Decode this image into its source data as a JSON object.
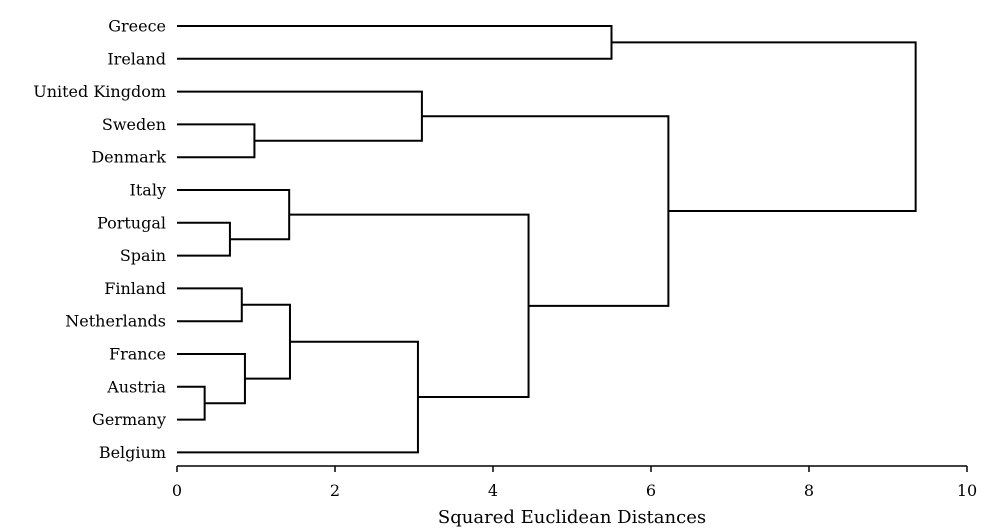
{
  "chart_data": {
    "type": "dendrogram",
    "orientation": "horizontal",
    "title": "",
    "xlabel": "Squared Euclidean Distances",
    "ylabel": "",
    "xlim": [
      0,
      10
    ],
    "xticks": [
      0,
      2,
      4,
      6,
      8,
      10
    ],
    "grid": false,
    "leaves": [
      "Greece",
      "Ireland",
      "United Kingdom",
      "Sweden",
      "Denmark",
      "Italy",
      "Portugal",
      "Spain",
      "Finland",
      "Netherlands",
      "France",
      "Austria",
      "Germany",
      "Belgium"
    ],
    "merges": [
      {
        "id": "c1",
        "children": [
          "Austria",
          "Germany"
        ],
        "distance": 0.35
      },
      {
        "id": "c2",
        "children": [
          "Portugal",
          "Spain"
        ],
        "distance": 0.67
      },
      {
        "id": "c3",
        "children": [
          "Finland",
          "Netherlands"
        ],
        "distance": 0.82
      },
      {
        "id": "c4",
        "children": [
          "France",
          "c1"
        ],
        "distance": 0.86
      },
      {
        "id": "c5",
        "children": [
          "Sweden",
          "Denmark"
        ],
        "distance": 0.98
      },
      {
        "id": "c6",
        "children": [
          "Italy",
          "c2"
        ],
        "distance": 1.42
      },
      {
        "id": "c7",
        "children": [
          "c3",
          "c4"
        ],
        "distance": 1.43
      },
      {
        "id": "c8",
        "children": [
          "c7",
          "Belgium"
        ],
        "distance": 3.05
      },
      {
        "id": "c9",
        "children": [
          "United Kingdom",
          "c5"
        ],
        "distance": 3.1
      },
      {
        "id": "c10",
        "children": [
          "c6",
          "c8"
        ],
        "distance": 4.45
      },
      {
        "id": "c11",
        "children": [
          "Greece",
          "Ireland"
        ],
        "distance": 5.5
      },
      {
        "id": "c12",
        "children": [
          "c9",
          "c10"
        ],
        "distance": 6.22
      },
      {
        "id": "c13",
        "children": [
          "c11",
          "c12"
        ],
        "distance": 9.35
      }
    ]
  }
}
